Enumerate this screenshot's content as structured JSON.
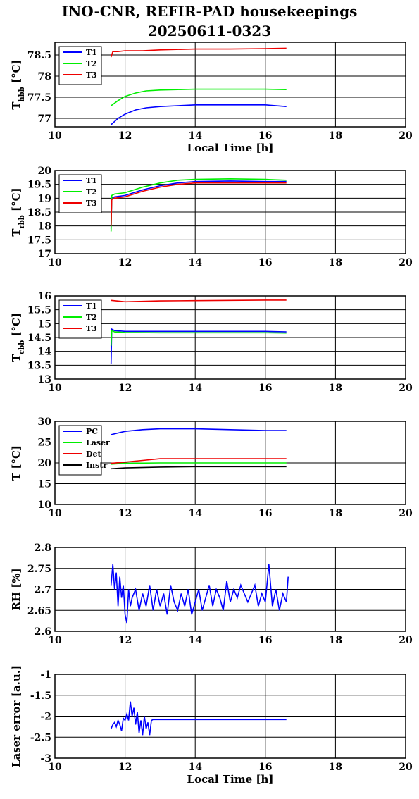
{
  "title": [
    "INO-CNR, REFIR-PAD housekeepings",
    "20250611-0323"
  ],
  "colors": {
    "blue": "#0000ff",
    "green": "#00ee00",
    "red": "#ee0000",
    "black": "#000000"
  },
  "chart_data": [
    {
      "type": "line",
      "ylabel": "T_hbb [°C]",
      "xlabel": "Local Time [h]",
      "xlim": [
        10,
        20
      ],
      "ylim": [
        76.8,
        78.8
      ],
      "xticks": [
        "10",
        "12",
        "14",
        "16",
        "18",
        "20"
      ],
      "yticks": [
        "77",
        "77.5",
        "78",
        "78.5"
      ],
      "legend_loc": "top-left",
      "series": [
        {
          "name": "T1",
          "color": "blue",
          "x": [
            11.6,
            11.8,
            12.0,
            12.3,
            12.6,
            13.0,
            13.5,
            14,
            15,
            16,
            16.6
          ],
          "y": [
            76.85,
            77.0,
            77.1,
            77.2,
            77.25,
            77.28,
            77.3,
            77.32,
            77.32,
            77.32,
            77.28
          ]
        },
        {
          "name": "T2",
          "color": "green",
          "x": [
            11.6,
            11.8,
            12.0,
            12.3,
            12.6,
            13.0,
            13.5,
            14,
            15,
            16,
            16.6
          ],
          "y": [
            77.3,
            77.42,
            77.52,
            77.6,
            77.65,
            77.67,
            77.68,
            77.69,
            77.69,
            77.69,
            77.68
          ]
        },
        {
          "name": "T3",
          "color": "red",
          "x": [
            11.6,
            11.65,
            11.8,
            12.0,
            12.5,
            13.0,
            14,
            15,
            16,
            16.6
          ],
          "y": [
            78.45,
            78.58,
            78.58,
            78.6,
            78.6,
            78.62,
            78.64,
            78.64,
            78.65,
            78.66
          ]
        }
      ]
    },
    {
      "type": "line",
      "ylabel": "T_rbb [°C]",
      "xlabel": "",
      "xlim": [
        10,
        20
      ],
      "ylim": [
        17,
        20
      ],
      "xticks": [
        "10",
        "12",
        "14",
        "16",
        "18",
        "20"
      ],
      "yticks": [
        "17",
        "17.5",
        "18",
        "18.5",
        "19",
        "19.5",
        "20"
      ],
      "legend_loc": "top-left",
      "series": [
        {
          "name": "T1",
          "color": "blue",
          "x": [
            11.6,
            11.62,
            11.7,
            12.0,
            12.5,
            13.0,
            13.5,
            14,
            15,
            16,
            16.6
          ],
          "y": [
            17.9,
            19.0,
            19.05,
            19.1,
            19.3,
            19.45,
            19.55,
            19.6,
            19.62,
            19.6,
            19.6
          ]
        },
        {
          "name": "T2",
          "color": "green",
          "x": [
            11.6,
            11.62,
            11.7,
            12.0,
            12.5,
            13.0,
            13.5,
            14,
            15,
            16,
            16.6
          ],
          "y": [
            17.8,
            19.1,
            19.15,
            19.2,
            19.4,
            19.55,
            19.65,
            19.68,
            19.7,
            19.68,
            19.65
          ]
        },
        {
          "name": "T3",
          "color": "red",
          "x": [
            11.6,
            11.62,
            11.7,
            12.0,
            12.5,
            13.0,
            13.5,
            14,
            15,
            16,
            16.6
          ],
          "y": [
            18.0,
            18.95,
            19.0,
            19.05,
            19.25,
            19.4,
            19.5,
            19.55,
            19.55,
            19.55,
            19.55
          ]
        }
      ]
    },
    {
      "type": "line",
      "ylabel": "T_cbb [°C]",
      "xlabel": "",
      "xlim": [
        10,
        20
      ],
      "ylim": [
        13,
        16
      ],
      "xticks": [
        "10",
        "12",
        "14",
        "16",
        "18",
        "20"
      ],
      "yticks": [
        "13",
        "13.5",
        "14",
        "14.5",
        "15",
        "15.5",
        "16"
      ],
      "legend_loc": "top-left",
      "series": [
        {
          "name": "T1",
          "color": "blue",
          "x": [
            11.6,
            11.62,
            11.7,
            12.0,
            13,
            14,
            15,
            16,
            16.6
          ],
          "y": [
            13.55,
            14.8,
            14.75,
            14.72,
            14.72,
            14.72,
            14.72,
            14.72,
            14.7
          ]
        },
        {
          "name": "T2",
          "color": "green",
          "x": [
            11.6,
            11.62,
            11.7,
            12.0,
            13,
            14,
            15,
            16,
            16.6
          ],
          "y": [
            14.2,
            14.75,
            14.7,
            14.68,
            14.67,
            14.67,
            14.67,
            14.67,
            14.66
          ]
        },
        {
          "name": "T3",
          "color": "red",
          "x": [
            11.6,
            12.0,
            13,
            14,
            15,
            16,
            16.6
          ],
          "y": [
            15.84,
            15.79,
            15.82,
            15.83,
            15.84,
            15.85,
            15.85
          ]
        }
      ]
    },
    {
      "type": "line",
      "ylabel": "T [°C]",
      "xlabel": "",
      "xlim": [
        10,
        20
      ],
      "ylim": [
        10,
        30
      ],
      "xticks": [
        "10",
        "12",
        "14",
        "16",
        "18",
        "20"
      ],
      "yticks": [
        "10",
        "15",
        "20",
        "25",
        "30"
      ],
      "legend_loc": "top-left",
      "series": [
        {
          "name": "PC",
          "color": "blue",
          "x": [
            11.6,
            12.0,
            12.5,
            13,
            14,
            15,
            16,
            16.6
          ],
          "y": [
            26.8,
            27.6,
            28.0,
            28.2,
            28.2,
            28.0,
            27.8,
            27.8
          ]
        },
        {
          "name": "Laser",
          "color": "green",
          "x": [
            11.6,
            12.0,
            13,
            14,
            15,
            16,
            16.6
          ],
          "y": [
            19.7,
            19.9,
            20.0,
            20.0,
            20.0,
            20.0,
            20.0
          ]
        },
        {
          "name": "Det",
          "color": "red",
          "x": [
            11.6,
            12.0,
            12.5,
            13,
            14,
            15,
            16,
            16.6
          ],
          "y": [
            19.9,
            20.2,
            20.6,
            21.0,
            21.0,
            21.0,
            21.0,
            21.0
          ]
        },
        {
          "name": "Instr",
          "color": "black",
          "x": [
            11.6,
            12.0,
            13,
            14,
            15,
            16,
            16.6
          ],
          "y": [
            18.6,
            18.8,
            19.0,
            19.1,
            19.1,
            19.1,
            19.1
          ]
        }
      ]
    },
    {
      "type": "line",
      "ylabel": "RH [%]",
      "xlabel": "",
      "xlim": [
        10,
        20
      ],
      "ylim": [
        2.6,
        2.8
      ],
      "xticks": [
        "10",
        "12",
        "14",
        "16",
        "18",
        "20"
      ],
      "yticks": [
        "2.6",
        "2.65",
        "2.7",
        "2.75",
        "2.8"
      ],
      "legend_loc": "none",
      "series": [
        {
          "name": "",
          "color": "blue",
          "x": [
            11.6,
            11.65,
            11.7,
            11.75,
            11.8,
            11.85,
            11.9,
            11.95,
            12.0,
            12.05,
            12.1,
            12.15,
            12.2,
            12.3,
            12.4,
            12.5,
            12.6,
            12.7,
            12.8,
            12.9,
            13.0,
            13.1,
            13.2,
            13.3,
            13.4,
            13.5,
            13.6,
            13.7,
            13.8,
            13.9,
            14.0,
            14.1,
            14.2,
            14.3,
            14.4,
            14.5,
            14.6,
            14.7,
            14.8,
            14.9,
            15.0,
            15.1,
            15.2,
            15.3,
            15.4,
            15.5,
            15.6,
            15.7,
            15.8,
            15.9,
            16.0,
            16.1,
            16.2,
            16.3,
            16.4,
            16.5,
            16.6,
            16.65
          ],
          "y": [
            2.71,
            2.76,
            2.7,
            2.74,
            2.66,
            2.73,
            2.68,
            2.71,
            2.64,
            2.62,
            2.7,
            2.66,
            2.68,
            2.7,
            2.65,
            2.69,
            2.66,
            2.71,
            2.65,
            2.7,
            2.66,
            2.69,
            2.64,
            2.71,
            2.67,
            2.65,
            2.69,
            2.66,
            2.7,
            2.64,
            2.67,
            2.7,
            2.65,
            2.68,
            2.71,
            2.66,
            2.7,
            2.68,
            2.65,
            2.72,
            2.67,
            2.7,
            2.68,
            2.71,
            2.69,
            2.67,
            2.69,
            2.71,
            2.66,
            2.69,
            2.67,
            2.76,
            2.66,
            2.7,
            2.65,
            2.69,
            2.67,
            2.73
          ]
        }
      ]
    },
    {
      "type": "line",
      "ylabel": "Laser error [a.u.]",
      "xlabel": "Local Time [h]",
      "xlim": [
        10,
        20
      ],
      "ylim": [
        -3,
        -1
      ],
      "xticks": [
        "10",
        "12",
        "14",
        "16",
        "18",
        "20"
      ],
      "yticks": [
        "-3",
        "-2.5",
        "-2",
        "-1.5",
        "-1"
      ],
      "legend_loc": "none",
      "series": [
        {
          "name": "",
          "color": "blue",
          "x": [
            11.6,
            11.65,
            11.7,
            11.75,
            11.8,
            11.85,
            11.9,
            11.95,
            12.0,
            12.05,
            12.1,
            12.15,
            12.2,
            12.25,
            12.3,
            12.35,
            12.4,
            12.45,
            12.5,
            12.55,
            12.6,
            12.65,
            12.7,
            12.75,
            12.8,
            13,
            14,
            15,
            16,
            16.6
          ],
          "y": [
            -2.3,
            -2.2,
            -2.15,
            -2.25,
            -2.1,
            -2.2,
            -2.35,
            -2.05,
            -2.1,
            -1.95,
            -2.1,
            -1.65,
            -2.0,
            -1.8,
            -2.2,
            -1.9,
            -2.4,
            -2.1,
            -2.45,
            -2.0,
            -2.3,
            -2.15,
            -2.45,
            -2.1,
            -2.08,
            -2.08,
            -2.08,
            -2.08,
            -2.08,
            -2.08
          ]
        }
      ]
    }
  ]
}
